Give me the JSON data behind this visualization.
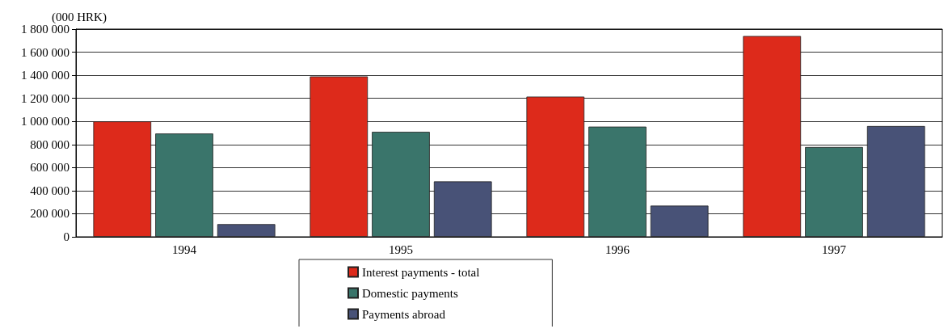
{
  "chart_data": {
    "type": "bar",
    "ylabel": "(000 HRK)",
    "categories": [
      "1994",
      "1995",
      "1996",
      "1997"
    ],
    "series": [
      {
        "name": "Interest payments - total",
        "color": "#dd2a1b",
        "values": [
          1000000,
          1390000,
          1215000,
          1740000
        ]
      },
      {
        "name": "Domestic payments",
        "color": "#3a756b",
        "values": [
          895000,
          910000,
          955000,
          778000
        ]
      },
      {
        "name": "Payments abroad",
        "color": "#485277",
        "values": [
          110000,
          480000,
          270000,
          960000
        ]
      }
    ],
    "ylim": [
      0,
      1800000
    ],
    "yticks": [
      {
        "value": 0,
        "label": "0"
      },
      {
        "value": 200000,
        "label": "200 000"
      },
      {
        "value": 400000,
        "label": "400 000"
      },
      {
        "value": 600000,
        "label": "600 000"
      },
      {
        "value": 800000,
        "label": "800 000"
      },
      {
        "value": 1000000,
        "label": "1 000 000"
      },
      {
        "value": 1200000,
        "label": "1 200 000"
      },
      {
        "value": 1400000,
        "label": "1 400 000"
      },
      {
        "value": 1600000,
        "label": "1 600 000"
      },
      {
        "value": 1800000,
        "label": "1 800 000"
      }
    ],
    "grid": "y",
    "legend": "bottom"
  }
}
